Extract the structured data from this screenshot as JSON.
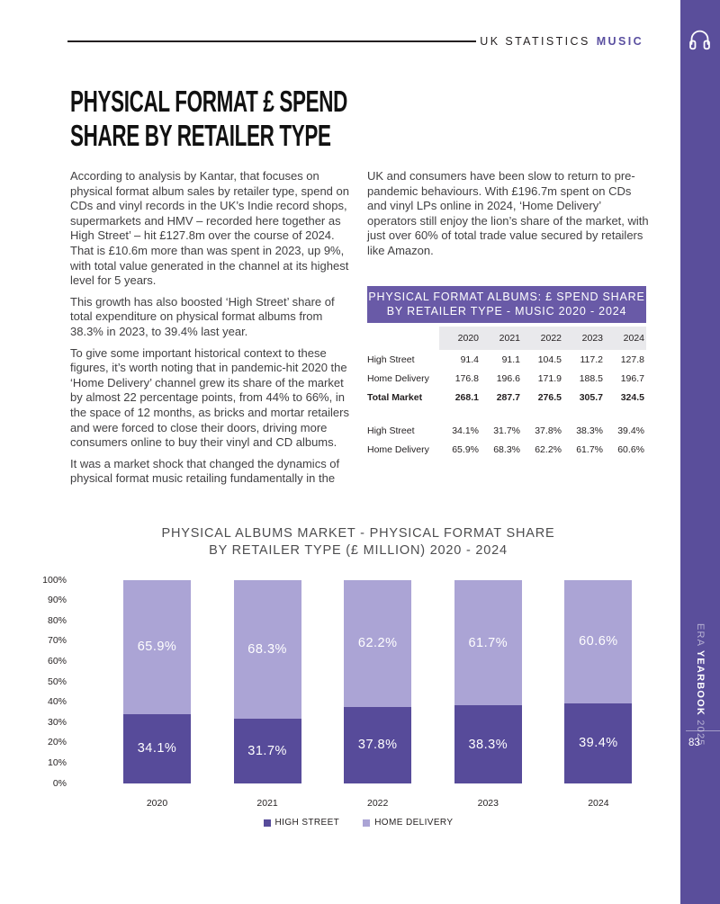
{
  "colors": {
    "sidebar_purple": "#5a4e9b",
    "table_header_purple": "#695aa7",
    "high_street_purple": "#574b9a",
    "home_delivery_lilac": "#aba4d5",
    "accent_text_purple": "#5a4fa0"
  },
  "header": {
    "section": "UK STATISTICS",
    "category": "MUSIC"
  },
  "sidebar": {
    "headphones_icon": "headphones-icon",
    "era": "ERA ",
    "yearbook": "YEARBOOK",
    "year": " 2025",
    "page_number": "83"
  },
  "title": {
    "line1": "PHYSICAL FORMAT £ SPEND",
    "line2": "SHARE BY RETAILER TYPE"
  },
  "article": {
    "left_paragraphs": [
      "According to analysis by Kantar, that focuses on physical format album sales by retailer type, spend on CDs and vinyl records in the UK’s Indie record shops, supermarkets and HMV – recorded here together as High Street’ – hit £127.8m over the course of 2024. That is £10.6m more than was spent in 2023, up 9%, with total value generated in the channel at its highest level for 5 years.",
      "This growth has also boosted ‘High Street’ share of total expenditure on physical format albums from 38.3% in 2023, to 39.4% last year.",
      "To give some important historical context to these figures, it’s worth noting that in pandemic-hit 2020 the ‘Home Delivery’ channel grew its share of the market by almost 22 percentage points, from 44% to 66%, in the space of 12 months, as bricks and mortar retailers and were forced to close their doors, driving more consumers online to buy their vinyl and CD albums.",
      "It was a market shock that changed the dynamics of physical format music retailing fundamentally in the"
    ],
    "right_paragraphs": [
      "UK and consumers have been slow to return to pre-pandemic behaviours. With £196.7m spent on CDs and vinyl LPs online in 2024, ‘Home Delivery’ operators still enjoy the lion’s share of the market, with just over 60% of total trade value secured by retailers like Amazon."
    ]
  },
  "table": {
    "title_line1": "PHYSICAL FORMAT ALBUMS: £ SPEND SHARE",
    "title_line2": "BY RETAILER TYPE - MUSIC 2020 - 2024",
    "columns": [
      "2020",
      "2021",
      "2022",
      "2023",
      "2024"
    ],
    "value_rows": [
      {
        "label": "High Street",
        "bold": false,
        "values": [
          "91.4",
          "91.1",
          "104.5",
          "117.2",
          "127.8"
        ]
      },
      {
        "label": "Home Delivery",
        "bold": false,
        "values": [
          "176.8",
          "196.6",
          "171.9",
          "188.5",
          "196.7"
        ]
      },
      {
        "label": "Total Market",
        "bold": true,
        "values": [
          "268.1",
          "287.7",
          "276.5",
          "305.7",
          "324.5"
        ]
      }
    ],
    "share_rows": [
      {
        "label": "High Street",
        "bold": false,
        "values": [
          "34.1%",
          "31.7%",
          "37.8%",
          "38.3%",
          "39.4%"
        ]
      },
      {
        "label": "Home Delivery",
        "bold": false,
        "values": [
          "65.9%",
          "68.3%",
          "62.2%",
          "61.7%",
          "60.6%"
        ]
      }
    ]
  },
  "chart": {
    "title_line1": "PHYSICAL ALBUMS MARKET - PHYSICAL FORMAT SHARE",
    "title_line2": "BY RETAILER TYPE (£ MILLION) 2020 - 2024"
  },
  "chart_data": {
    "type": "bar",
    "stacked": true,
    "title": "PHYSICAL ALBUMS MARKET - PHYSICAL FORMAT SHARE BY RETAILER TYPE (£ MILLION) 2020 - 2024",
    "categories": [
      "2020",
      "2021",
      "2022",
      "2023",
      "2024"
    ],
    "series": [
      {
        "name": "HIGH STREET",
        "color": "#574b9a",
        "values": [
          34.1,
          31.7,
          37.8,
          38.3,
          39.4
        ]
      },
      {
        "name": "HOME DELIVERY",
        "color": "#aba4d5",
        "values": [
          65.9,
          68.3,
          62.2,
          61.7,
          60.6
        ]
      }
    ],
    "value_labels": [
      [
        "34.1%",
        "31.7%",
        "37.8%",
        "38.3%",
        "39.4%"
      ],
      [
        "65.9%",
        "68.3%",
        "62.2%",
        "61.7%",
        "60.6%"
      ]
    ],
    "xlabel": "",
    "ylabel": "",
    "ylim": [
      0,
      100
    ],
    "yticks": [
      "0%",
      "10%",
      "20%",
      "30%",
      "40%",
      "50%",
      "60%",
      "70%",
      "80%",
      "90%",
      "100%"
    ],
    "grid": false,
    "legend_position": "bottom"
  }
}
